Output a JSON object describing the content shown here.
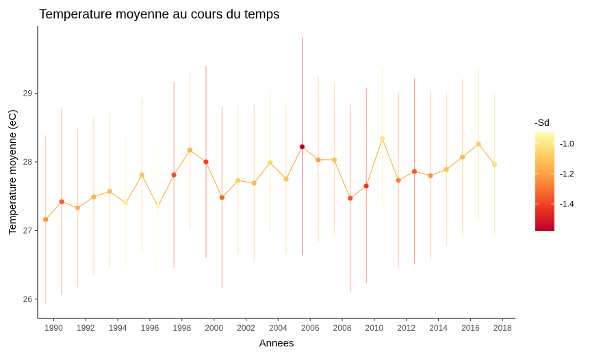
{
  "chart_data": {
    "type": "line",
    "title": "Temperature moyenne au cours du temps",
    "xlabel": "Annees",
    "ylabel": "Temperature moyenne (eC)",
    "xlim": [
      1989.0,
      2018.8
    ],
    "ylim": [
      25.72,
      29.98
    ],
    "x_ticks": [
      1990,
      1992,
      1994,
      1996,
      1998,
      2000,
      2002,
      2004,
      2006,
      2008,
      2010,
      2012,
      2014,
      2016,
      2018
    ],
    "x_tick_labels": [
      "1990",
      "1992",
      "1994",
      "1996",
      "1998",
      "2000",
      "2002",
      "2004",
      "2006",
      "2008",
      "2010",
      "2012",
      "2014",
      "2016",
      "2018"
    ],
    "y_ticks": [
      26,
      27,
      28,
      29
    ],
    "y_tick_labels": [
      "26",
      "27",
      "28",
      "29"
    ],
    "grid": false,
    "line_color": "#F5A623",
    "legend": {
      "title": "-Sd",
      "placement": "right",
      "type": "colorbar",
      "range": [
        -1.58,
        -0.92
      ],
      "ticks": [
        -1.0,
        -1.2,
        -1.4
      ],
      "tick_labels": [
        "-1.0",
        "-1.2",
        "-1.4"
      ],
      "colors": [
        "#BD0026",
        "#F03B20",
        "#FD8D3C",
        "#FECC5C",
        "#FFFFB2"
      ]
    },
    "series": [
      {
        "x": [
          1989.5,
          1990.5,
          1991.5,
          1992.5,
          1993.5,
          1994.5,
          1995.5,
          1996.5,
          1997.5,
          1998.5,
          1999.5,
          2000.5,
          2001.5,
          2002.5,
          2003.5,
          2004.5,
          2005.5,
          2006.5,
          2007.5,
          2008.5,
          2009.5,
          2010.5,
          2011.5,
          2012.5,
          2013.5,
          2014.5,
          2015.5,
          2016.5,
          2017.5
        ],
        "y": [
          27.16,
          27.42,
          27.33,
          27.49,
          27.57,
          27.4,
          27.81,
          27.35,
          27.81,
          28.17,
          28.0,
          27.48,
          27.73,
          27.69,
          27.99,
          27.75,
          28.22,
          28.03,
          28.03,
          27.47,
          27.65,
          28.34,
          27.73,
          27.86,
          27.8,
          27.89,
          28.07,
          28.26,
          27.96
        ],
        "ymin": [
          25.93,
          26.07,
          26.18,
          26.35,
          26.45,
          26.45,
          26.71,
          26.42,
          26.46,
          27.02,
          26.61,
          26.17,
          26.66,
          26.55,
          26.95,
          26.66,
          26.64,
          26.83,
          26.93,
          26.11,
          26.23,
          27.34,
          26.46,
          26.51,
          26.58,
          26.78,
          26.94,
          27.18,
          26.95
        ],
        "ymax": [
          28.39,
          28.78,
          28.48,
          28.64,
          28.7,
          28.37,
          28.92,
          28.29,
          29.17,
          29.33,
          29.4,
          28.81,
          28.82,
          28.83,
          29.04,
          28.85,
          29.81,
          29.24,
          29.15,
          28.84,
          29.08,
          29.35,
          29.01,
          29.22,
          29.03,
          29.01,
          29.21,
          29.35,
          28.99
        ],
        "neg_sd": [
          -1.23,
          -1.35,
          -1.15,
          -1.15,
          -1.13,
          -0.97,
          -1.11,
          -0.94,
          -1.36,
          -1.16,
          -1.4,
          -1.33,
          -1.08,
          -1.14,
          -1.05,
          -1.1,
          -1.58,
          -1.21,
          -1.11,
          -1.36,
          -1.42,
          -1.01,
          -1.27,
          -1.36,
          -1.23,
          -1.12,
          -1.13,
          -1.09,
          -1.02
        ]
      }
    ]
  }
}
